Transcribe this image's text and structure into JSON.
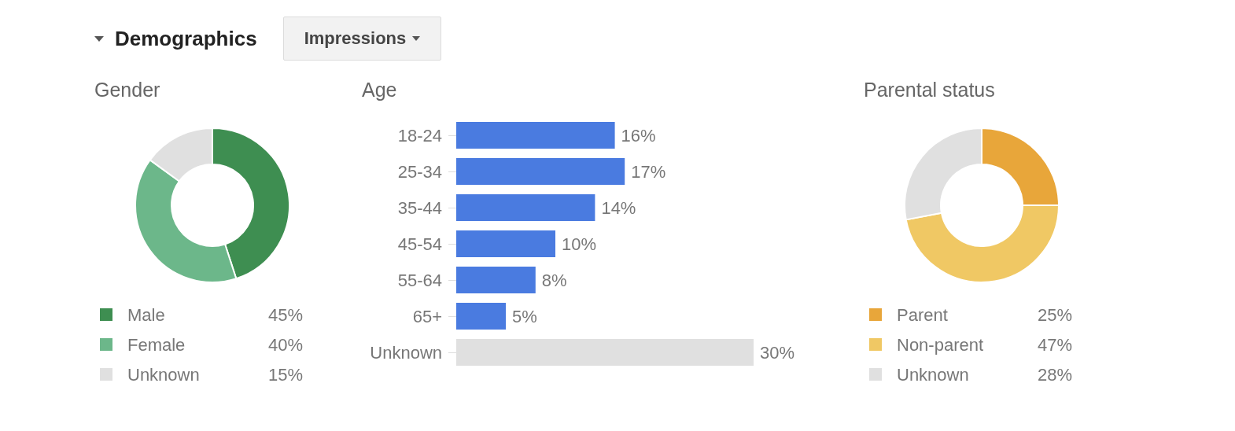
{
  "chart_data": [
    {
      "type": "other",
      "title": "Demographics",
      "annotations": [
        "Impressions"
      ]
    },
    {
      "type": "donut",
      "title": "Gender",
      "categories": [
        "Male",
        "Female",
        "Unknown"
      ],
      "values": [
        45,
        40,
        15
      ],
      "value_labels": [
        "45%",
        "40%",
        "15%"
      ],
      "colors": [
        "#3e8e51",
        "#6cb78a",
        "#e0e0e0"
      ],
      "legend": "bottom left"
    },
    {
      "type": "bar",
      "orientation": "horizontal",
      "title": "Age",
      "categories": [
        "18-24",
        "25-34",
        "35-44",
        "45-54",
        "55-64",
        "65+",
        "Unknown"
      ],
      "values": [
        16,
        17,
        14,
        10,
        8,
        5,
        30
      ],
      "value_labels": [
        "16%",
        "17%",
        "14%",
        "10%",
        "8%",
        "5%",
        "30%"
      ],
      "colors": [
        "#4a7be0",
        "#4a7be0",
        "#4a7be0",
        "#4a7be0",
        "#4a7be0",
        "#4a7be0",
        "#e0e0e0"
      ],
      "tick_labels": "y"
    },
    {
      "type": "donut",
      "title": "Parental status",
      "categories": [
        "Parent",
        "Non-parent",
        "Unknown"
      ],
      "values": [
        25,
        47,
        28
      ],
      "value_labels": [
        "25%",
        "47%",
        "28%"
      ],
      "colors": [
        "#e8a63a",
        "#f0c864",
        "#e0e0e0"
      ],
      "legend": "bottom left"
    }
  ]
}
